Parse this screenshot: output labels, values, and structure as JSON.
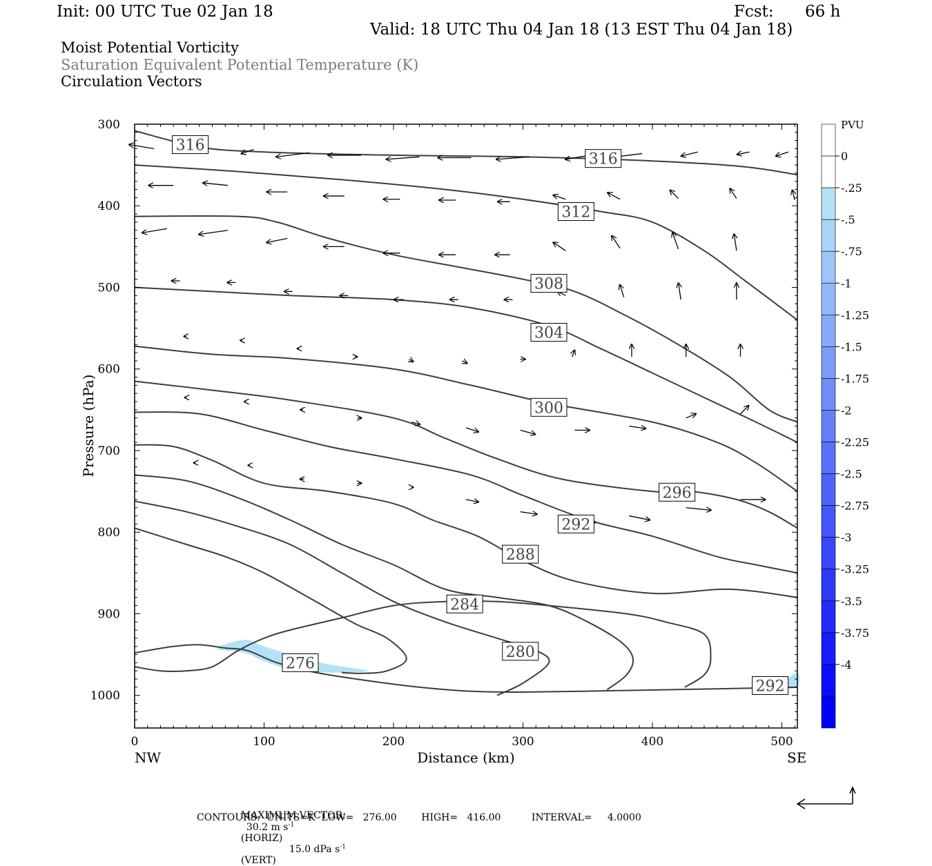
{
  "header": {
    "init": "Init: 00 UTC Tue 02 Jan 18",
    "fcst_label": "Fcst:",
    "fcst_value": "66 h",
    "valid": "Valid: 18 UTC Thu 04 Jan 18 (13 EST Thu 04 Jan 18)"
  },
  "titles": {
    "line1": "Moist Potential Vorticity",
    "line2": "Saturation Equivalent Potential Temperature (K)",
    "line3": "Circulation Vectors"
  },
  "colors": {
    "contour": "#3c3c3c",
    "frame": "#000000",
    "title2": "#7a7a7a",
    "pv_light": "#b3e2f6",
    "pv_dark": "#0000ff"
  },
  "footer": {
    "max_vector_label": "MAXIMUM VECTOR:",
    "max_horiz_value": "30.2 m s",
    "max_horiz_unit": "(HORIZ)",
    "max_vert_value": "15.0 dPa s",
    "max_vert_unit": "(VERT)",
    "exponent": "-1",
    "contours_line": "CONTOURS:  UNITS=K  LOW=   276.00        HIGH=   416.00          INTERVAL=     4.0000"
  },
  "chart_data": {
    "type": "cross-section",
    "xlabel": "Distance (km)",
    "ylabel": "Pressure (hPa)",
    "xlim": [
      0,
      512
    ],
    "ylim": [
      1040,
      300
    ],
    "y_scale": "linear, inverted",
    "x_ticks": [
      0,
      100,
      200,
      300,
      400,
      500
    ],
    "y_ticks": [
      300,
      400,
      500,
      600,
      700,
      800,
      900,
      1000
    ],
    "x_end_labels": {
      "left": "NW",
      "right": "SE"
    },
    "colorbar": {
      "units": "PVU",
      "labels": [
        "0",
        "-.25",
        "-.5",
        "-.75",
        "-1",
        "-1.25",
        "-1.5",
        "-1.75",
        "-2",
        "-2.25",
        "-2.5",
        "-2.75",
        "-3",
        "-3.25",
        "-3.5",
        "-3.75",
        "-4"
      ],
      "values": [
        0.25,
        0,
        -0.25,
        -0.5,
        -0.75,
        -1,
        -1.25,
        -1.5,
        -1.75,
        -2,
        -2.25,
        -2.5,
        -2.75,
        -3,
        -3.25,
        -3.5,
        -3.75,
        -4,
        -4.25
      ]
    },
    "contours": [
      {
        "label": "316",
        "label_points": [
          [
            43,
            325
          ],
          [
            362,
            342
          ]
        ],
        "points": [
          [
            0,
            308
          ],
          [
            50,
            328
          ],
          [
            100,
            334
          ],
          [
            200,
            338
          ],
          [
            300,
            340
          ],
          [
            400,
            345
          ],
          [
            470,
            352
          ],
          [
            512,
            362
          ]
        ]
      },
      {
        "label": "312",
        "label_points": [
          [
            341,
            407
          ]
        ],
        "points": [
          [
            0,
            350
          ],
          [
            80,
            358
          ],
          [
            160,
            368
          ],
          [
            240,
            380
          ],
          [
            300,
            392
          ],
          [
            360,
            407
          ],
          [
            400,
            420
          ],
          [
            440,
            455
          ],
          [
            470,
            490
          ],
          [
            512,
            540
          ]
        ]
      },
      {
        "label": "308",
        "label_points": [
          [
            320,
            495
          ]
        ],
        "points": [
          [
            0,
            413
          ],
          [
            80,
            413
          ],
          [
            110,
            420
          ],
          [
            150,
            440
          ],
          [
            200,
            460
          ],
          [
            250,
            475
          ],
          [
            300,
            490
          ],
          [
            340,
            505
          ],
          [
            380,
            535
          ],
          [
            420,
            570
          ],
          [
            460,
            610
          ],
          [
            490,
            650
          ],
          [
            512,
            665
          ]
        ]
      },
      {
        "label": "304",
        "label_points": [
          [
            320,
            555
          ]
        ],
        "points": [
          [
            0,
            500
          ],
          [
            60,
            505
          ],
          [
            120,
            510
          ],
          [
            200,
            515
          ],
          [
            260,
            525
          ],
          [
            320,
            547
          ],
          [
            360,
            575
          ],
          [
            400,
            605
          ],
          [
            440,
            635
          ],
          [
            480,
            665
          ],
          [
            512,
            690
          ]
        ]
      },
      {
        "label": "300",
        "label_points": [
          [
            320,
            647
          ]
        ],
        "points": [
          [
            0,
            572
          ],
          [
            60,
            582
          ],
          [
            120,
            587
          ],
          [
            200,
            600
          ],
          [
            260,
            620
          ],
          [
            320,
            642
          ],
          [
            400,
            665
          ],
          [
            450,
            690
          ],
          [
            480,
            715
          ],
          [
            512,
            750
          ]
        ]
      },
      {
        "label": "296",
        "label_points": [
          [
            419,
            751
          ]
        ],
        "points": [
          [
            0,
            615
          ],
          [
            60,
            626
          ],
          [
            120,
            638
          ],
          [
            200,
            660
          ],
          [
            240,
            685
          ],
          [
            280,
            710
          ],
          [
            330,
            735
          ],
          [
            400,
            750
          ],
          [
            430,
            750
          ],
          [
            465,
            760
          ],
          [
            490,
            775
          ],
          [
            512,
            795
          ]
        ]
      },
      {
        "label": "292",
        "label_points": [
          [
            341,
            790
          ]
        ],
        "points": [
          [
            0,
            653
          ],
          [
            50,
            655
          ],
          [
            100,
            675
          ],
          [
            150,
            695
          ],
          [
            200,
            710
          ],
          [
            260,
            730
          ],
          [
            300,
            755
          ],
          [
            350,
            785
          ],
          [
            400,
            805
          ],
          [
            450,
            830
          ],
          [
            480,
            840
          ],
          [
            512,
            850
          ]
        ]
      },
      {
        "label": "288",
        "label_points": [
          [
            298,
            827
          ]
        ],
        "points": [
          [
            0,
            693
          ],
          [
            30,
            695
          ],
          [
            60,
            712
          ],
          [
            100,
            740
          ],
          [
            150,
            750
          ],
          [
            200,
            765
          ],
          [
            230,
            785
          ],
          [
            265,
            805
          ],
          [
            300,
            835
          ],
          [
            340,
            860
          ],
          [
            400,
            875
          ],
          [
            460,
            870
          ],
          [
            512,
            880
          ]
        ]
      },
      {
        "label": "284",
        "label_points": [
          [
            255,
            888
          ]
        ],
        "points": [
          [
            0,
            730
          ],
          [
            40,
            737
          ],
          [
            80,
            758
          ],
          [
            120,
            785
          ],
          [
            160,
            815
          ],
          [
            200,
            840
          ],
          [
            240,
            870
          ],
          [
            280,
            880
          ],
          [
            320,
            890
          ],
          [
            350,
            910
          ],
          [
            376,
            935
          ],
          [
            385,
            955
          ],
          [
            380,
            975
          ],
          [
            365,
            993
          ]
        ]
      },
      {
        "label": "280",
        "label_points": [
          [
            298,
            946
          ]
        ],
        "points": [
          [
            0,
            762
          ],
          [
            40,
            775
          ],
          [
            80,
            793
          ],
          [
            120,
            815
          ],
          [
            160,
            850
          ],
          [
            200,
            885
          ],
          [
            240,
            910
          ],
          [
            280,
            930
          ],
          [
            310,
            945
          ],
          [
            320,
            960
          ],
          [
            300,
            985
          ],
          [
            280,
            1000
          ]
        ]
      },
      {
        "label": "",
        "label_points": [],
        "points": [
          [
            0,
            795
          ],
          [
            40,
            815
          ],
          [
            70,
            830
          ],
          [
            100,
            850
          ],
          [
            140,
            885
          ],
          [
            170,
            912
          ],
          [
            195,
            930
          ],
          [
            210,
            955
          ],
          [
            195,
            970
          ],
          [
            175,
            973
          ],
          [
            160,
            972
          ]
        ]
      },
      {
        "label": "",
        "label_points": [],
        "points": [
          [
            0,
            965
          ],
          [
            20,
            970
          ],
          [
            40,
            970
          ],
          [
            60,
            965
          ],
          [
            80,
            945
          ],
          [
            100,
            930
          ],
          [
            120,
            920
          ],
          [
            160,
            905
          ],
          [
            200,
            890
          ],
          [
            240,
            885
          ],
          [
            280,
            885
          ],
          [
            320,
            890
          ],
          [
            380,
            900
          ],
          [
            410,
            910
          ],
          [
            440,
            925
          ],
          [
            445,
            955
          ],
          [
            440,
            975
          ],
          [
            425,
            990
          ]
        ]
      },
      {
        "label": "276",
        "label_points": [
          [
            128,
            960
          ]
        ],
        "points": [
          [
            0,
            948
          ],
          [
            30,
            940
          ],
          [
            50,
            938
          ],
          [
            70,
            942
          ],
          [
            87,
            945
          ],
          [
            110,
            960
          ],
          [
            140,
            972
          ],
          [
            180,
            982
          ],
          [
            220,
            990
          ],
          [
            260,
            995
          ],
          [
            300,
            996
          ],
          [
            380,
            994
          ],
          [
            450,
            992
          ],
          [
            512,
            990
          ]
        ]
      },
      {
        "label": "292",
        "label_points": [
          [
            491,
            988
          ]
        ],
        "points": []
      }
    ],
    "negative_pv_regions": [
      {
        "value": -0.25,
        "points": [
          [
            65,
            940
          ],
          [
            85,
            932
          ],
          [
            100,
            940
          ],
          [
            120,
            950
          ],
          [
            150,
            962
          ],
          [
            180,
            970
          ],
          [
            150,
            972
          ],
          [
            120,
            968
          ],
          [
            100,
            958
          ],
          [
            85,
            948
          ],
          [
            65,
            944
          ]
        ]
      },
      {
        "value": -0.25,
        "points": [
          [
            500,
            985
          ],
          [
            512,
            972
          ],
          [
            512,
            990
          ],
          [
            500,
            990
          ]
        ]
      }
    ],
    "vectors_note": "circulation vectors (u, omega) in arbitrary plot units; scale: MAXIMUM VECTOR 30.2 m s-1 horiz, 15.0 dPa s-1 vert",
    "vectors": [
      [
        15,
        330,
        -3,
        0.5
      ],
      [
        50,
        325,
        -3,
        0.3
      ],
      [
        92,
        331,
        -1.5,
        -0.5
      ],
      [
        135,
        335,
        -4,
        -0.5
      ],
      [
        175,
        338,
        -4,
        0
      ],
      [
        220,
        340,
        -4,
        -0.3
      ],
      [
        260,
        341,
        -4,
        0
      ],
      [
        305,
        340,
        -4,
        -0.3
      ],
      [
        352,
        338,
        -3,
        -0.5
      ],
      [
        392,
        336,
        -4,
        -0.5
      ],
      [
        435,
        334,
        -2,
        -0.5
      ],
      [
        475,
        334,
        -1.5,
        -0.3
      ],
      [
        505,
        334,
        -1.5,
        -0.5
      ],
      [
        30,
        375,
        -3,
        0
      ],
      [
        72,
        375,
        -3,
        0.3
      ],
      [
        118,
        383,
        -2.5,
        0
      ],
      [
        162,
        388,
        -2.5,
        0
      ],
      [
        205,
        392,
        -2,
        0
      ],
      [
        248,
        393,
        -2,
        0
      ],
      [
        290,
        395,
        -1.5,
        0
      ],
      [
        333,
        392,
        -1.5,
        0.5
      ],
      [
        375,
        392,
        -1.5,
        0.8
      ],
      [
        420,
        391,
        -1,
        1
      ],
      [
        465,
        391,
        -0.8,
        1.2
      ],
      [
        510,
        393,
        -0.3,
        1.2
      ],
      [
        25,
        428,
        -3,
        -0.5
      ],
      [
        72,
        430,
        -3.5,
        -0.5
      ],
      [
        118,
        440,
        -2.5,
        -0.5
      ],
      [
        162,
        450,
        -2.5,
        0
      ],
      [
        205,
        458,
        -2,
        0
      ],
      [
        248,
        460,
        -2,
        0
      ],
      [
        290,
        460,
        -1.8,
        0
      ],
      [
        333,
        455,
        -1.5,
        1
      ],
      [
        375,
        452,
        -1,
        1.5
      ],
      [
        420,
        453,
        -0.7,
        2
      ],
      [
        465,
        455,
        -0.3,
        2
      ],
      [
        35,
        492,
        -1,
        0
      ],
      [
        78,
        494,
        -1,
        0
      ],
      [
        122,
        505,
        -1,
        0
      ],
      [
        165,
        510,
        -1,
        0
      ],
      [
        208,
        515,
        -1.2,
        0
      ],
      [
        250,
        515,
        -1,
        0
      ],
      [
        292,
        515,
        -1,
        0
      ],
      [
        333,
        510,
        -1,
        0.5
      ],
      [
        378,
        512,
        -0.5,
        1.5
      ],
      [
        422,
        515,
        -0.3,
        2
      ],
      [
        465,
        515,
        0,
        2
      ],
      [
        40,
        560,
        -0.3,
        0
      ],
      [
        83,
        565,
        -0.2,
        0
      ],
      [
        127,
        575,
        -0.2,
        0
      ],
      [
        170,
        585,
        0.3,
        0
      ],
      [
        212,
        588,
        0.5,
        -0.3
      ],
      [
        253,
        590,
        0.6,
        -0.3
      ],
      [
        298,
        588,
        0.6,
        0
      ],
      [
        338,
        585,
        0.3,
        0.8
      ],
      [
        384,
        585,
        0,
        1.5
      ],
      [
        426,
        585,
        0,
        1.5
      ],
      [
        468,
        585,
        0,
        1.5
      ],
      [
        40,
        635,
        -0.2,
        0
      ],
      [
        86,
        640,
        -0.2,
        0
      ],
      [
        130,
        650,
        -0.3,
        0
      ],
      [
        172,
        660,
        0.5,
        0
      ],
      [
        214,
        665,
        1,
        -0.3
      ],
      [
        256,
        672,
        1.5,
        -0.5
      ],
      [
        298,
        675,
        1.8,
        -0.5
      ],
      [
        340,
        675,
        1.8,
        0
      ],
      [
        382,
        670,
        2,
        -0.3
      ],
      [
        426,
        660,
        1.2,
        0.5
      ],
      [
        468,
        655,
        1,
        1
      ],
      [
        47,
        715,
        -0.2,
        0
      ],
      [
        89,
        718,
        -0.2,
        0
      ],
      [
        131,
        735,
        -0.5,
        0
      ],
      [
        172,
        740,
        0.5,
        0
      ],
      [
        214,
        745,
        0.2,
        0
      ],
      [
        256,
        760,
        1.5,
        -0.3
      ],
      [
        298,
        775,
        2,
        -0.3
      ],
      [
        340,
        785,
        2.5,
        -0.3
      ],
      [
        382,
        780,
        2.5,
        -0.5
      ],
      [
        426,
        770,
        3,
        -0.3
      ],
      [
        468,
        760,
        3,
        0
      ]
    ]
  }
}
